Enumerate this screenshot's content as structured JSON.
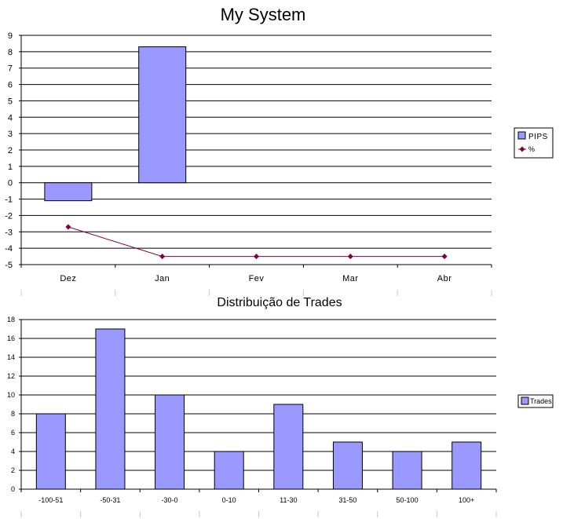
{
  "chart_data": [
    {
      "type": "bar",
      "title": "My System",
      "categories": [
        "Dez",
        "Jan",
        "Fev",
        "Mar",
        "Abr"
      ],
      "ylim": [
        -5,
        9
      ],
      "yticks": [
        9,
        8,
        7,
        6,
        5,
        4,
        3,
        2,
        1,
        0,
        -1,
        -2,
        -3,
        -4,
        -5
      ],
      "grid": true,
      "legend": "right",
      "series": [
        {
          "name": "PIPS",
          "kind": "bar",
          "color": "#9999ff",
          "values": [
            -1.1,
            8.3,
            null,
            null,
            null
          ]
        },
        {
          "name": "%",
          "kind": "line",
          "color": "#800040",
          "values": [
            -2.7,
            -4.5,
            -4.5,
            -4.5,
            -4.5
          ]
        }
      ]
    },
    {
      "type": "bar",
      "title": "Distribuição de Trades",
      "categories": [
        "-100-51",
        "-50-31",
        "-30-0",
        "0-10",
        "11-30",
        "31-50",
        "50-100",
        "100+"
      ],
      "ylim": [
        0,
        18
      ],
      "yticks": [
        18,
        16,
        14,
        12,
        10,
        8,
        6,
        4,
        2,
        0
      ],
      "grid": true,
      "legend": "right",
      "series": [
        {
          "name": "Trades",
          "kind": "bar",
          "color": "#9999ff",
          "values": [
            8,
            17,
            10,
            4,
            9,
            5,
            4,
            5
          ]
        }
      ]
    }
  ]
}
